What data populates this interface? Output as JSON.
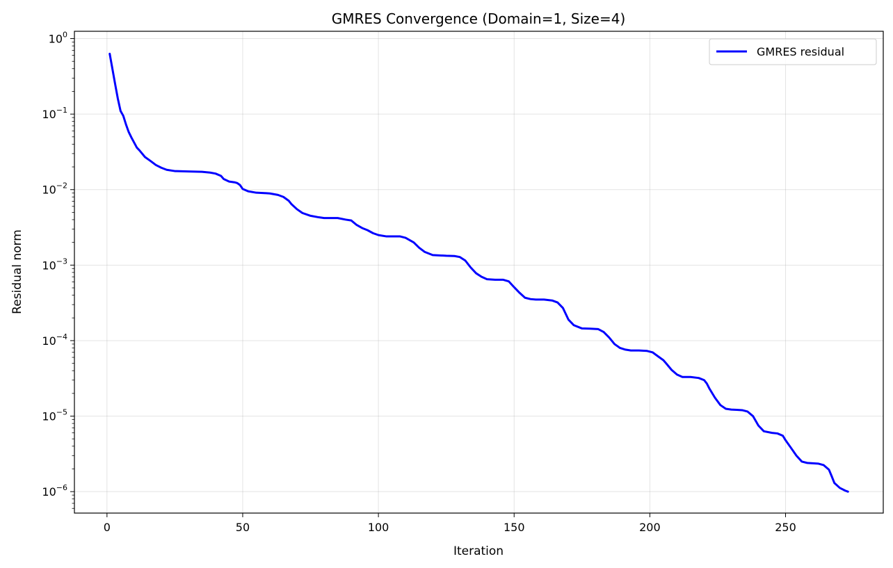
{
  "chart_data": {
    "type": "line",
    "title": "GMRES Convergence (Domain=1, Size=4)",
    "xlabel": "Iteration",
    "ylabel": "Residual norm",
    "xlim": [
      -12,
      286
    ],
    "ylim": [
      5.2e-07,
      1.25
    ],
    "yscale": "log",
    "grid": true,
    "legend_position": "top-right",
    "x_ticks": [
      0,
      50,
      100,
      150,
      200,
      250
    ],
    "y_ticks": [
      {
        "value": 1e-06,
        "base": "10",
        "exp": "−6"
      },
      {
        "value": 1e-05,
        "base": "10",
        "exp": "−5"
      },
      {
        "value": 0.0001,
        "base": "10",
        "exp": "−4"
      },
      {
        "value": 0.001,
        "base": "10",
        "exp": "−3"
      },
      {
        "value": 0.01,
        "base": "10",
        "exp": "−2"
      },
      {
        "value": 0.1,
        "base": "10",
        "exp": "−1"
      },
      {
        "value": 1,
        "base": "10",
        "exp": "0"
      }
    ],
    "series": [
      {
        "name": "GMRES residual",
        "color": "#0000ff",
        "x": [
          1,
          3,
          4,
          5,
          6,
          7,
          8,
          9,
          10,
          11,
          12,
          14,
          16,
          18,
          20,
          22,
          25,
          30,
          35,
          38,
          40,
          42,
          43,
          45,
          47,
          48,
          49,
          50,
          52,
          55,
          58,
          60,
          63,
          65,
          67,
          68,
          70,
          72,
          75,
          78,
          80,
          85,
          88,
          90,
          92,
          94,
          96,
          98,
          100,
          103,
          106,
          108,
          110,
          113,
          115,
          117,
          120,
          125,
          128,
          130,
          132,
          134,
          136,
          138,
          140,
          143,
          146,
          148,
          150,
          152,
          154,
          156,
          158,
          161,
          164,
          166,
          168,
          170,
          172,
          175,
          178,
          181,
          183,
          185,
          187,
          189,
          191,
          193,
          196,
          199,
          201,
          203,
          205,
          206,
          208,
          210,
          212,
          215,
          218,
          220,
          221,
          222,
          224,
          226,
          228,
          230,
          232,
          234,
          236,
          238,
          240,
          242,
          245,
          247,
          249,
          250,
          252,
          254,
          256,
          258,
          262,
          264,
          266,
          267,
          268,
          270,
          272,
          273
        ],
        "y": [
          0.63,
          0.25,
          0.16,
          0.11,
          0.095,
          0.073,
          0.058,
          0.049,
          0.042,
          0.036,
          0.033,
          0.027,
          0.024,
          0.0212,
          0.0195,
          0.0183,
          0.0176,
          0.0174,
          0.0172,
          0.0168,
          0.0163,
          0.0152,
          0.0138,
          0.0128,
          0.0125,
          0.0122,
          0.0115,
          0.0102,
          0.0095,
          0.0091,
          0.009,
          0.0089,
          0.0085,
          0.008,
          0.0071,
          0.0064,
          0.0055,
          0.0049,
          0.0045,
          0.0043,
          0.0042,
          0.0042,
          0.004,
          0.0039,
          0.0034,
          0.0031,
          0.0029,
          0.00265,
          0.0025,
          0.0024,
          0.0024,
          0.0024,
          0.0023,
          0.002,
          0.0017,
          0.0015,
          0.00136,
          0.00133,
          0.00132,
          0.00128,
          0.00115,
          0.00093,
          0.00078,
          0.0007,
          0.00065,
          0.00064,
          0.00064,
          0.00061,
          0.00051,
          0.00043,
          0.00037,
          0.000355,
          0.00035,
          0.00035,
          0.00034,
          0.00032,
          0.00027,
          0.00019,
          0.00016,
          0.000145,
          0.000144,
          0.000142,
          0.00013,
          0.00011,
          9e-05,
          8e-05,
          7.6e-05,
          7.4e-05,
          7.4e-05,
          7.3e-05,
          7e-05,
          6.2e-05,
          5.5e-05,
          5e-05,
          4.1e-05,
          3.55e-05,
          3.3e-05,
          3.3e-05,
          3.2e-05,
          3e-05,
          2.7e-05,
          2.3e-05,
          1.75e-05,
          1.4e-05,
          1.25e-05,
          1.22e-05,
          1.21e-05,
          1.2e-05,
          1.15e-05,
          1e-05,
          7.5e-06,
          6.3e-06,
          6e-06,
          5.9e-06,
          5.5e-06,
          4.8e-06,
          3.8e-06,
          3e-06,
          2.5e-06,
          2.4e-06,
          2.35e-06,
          2.25e-06,
          1.95e-06,
          1.6e-06,
          1.3e-06,
          1.12e-06,
          1.03e-06,
          1e-06
        ]
      }
    ]
  }
}
